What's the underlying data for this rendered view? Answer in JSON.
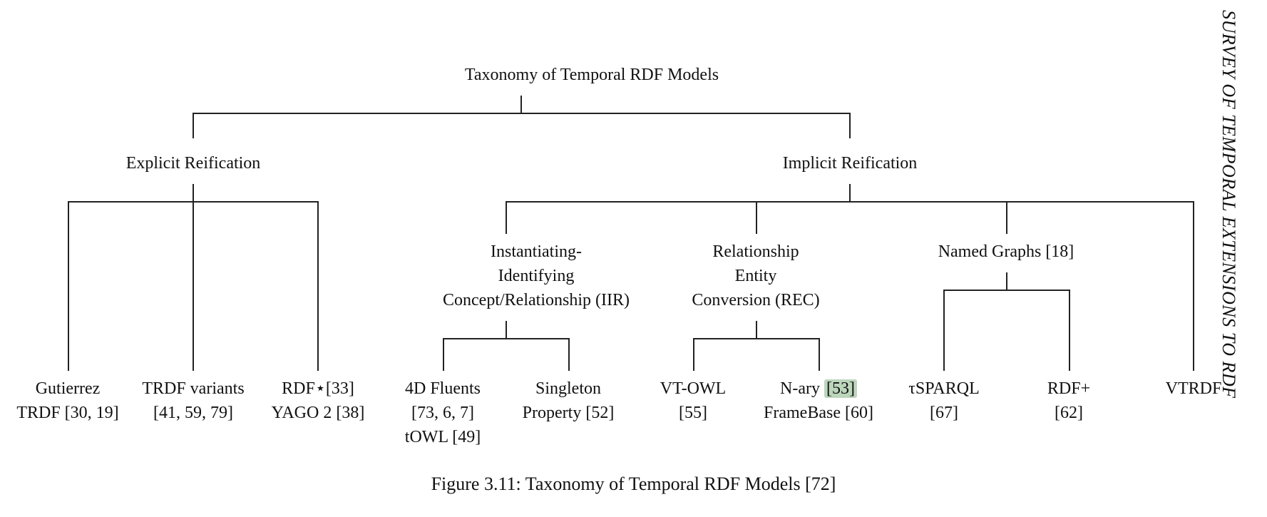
{
  "root": "Taxonomy of Temporal RDF Models",
  "explicit": {
    "title": "Explicit Reification",
    "leaves": [
      {
        "lines": [
          "Gutierrez",
          "TRDF [30, 19]"
        ]
      },
      {
        "lines": [
          "TRDF variants",
          "[41, 59, 79]"
        ]
      },
      {
        "lines": [
          "RDF⋆[33]",
          "YAGO 2 [38]"
        ]
      }
    ]
  },
  "implicit": {
    "title": "Implicit Reification",
    "iir": {
      "lines": [
        "Instantiating-",
        "Identifying",
        "Concept/Relationship (IIR)"
      ],
      "leaves": [
        {
          "lines": [
            "4D Fluents",
            "[73, 6, 7]",
            "tOWL [49]"
          ]
        },
        {
          "lines": [
            "Singleton",
            "Property [52]"
          ]
        }
      ]
    },
    "rec": {
      "lines": [
        "Relationship",
        "Entity",
        "Conversion (REC)"
      ],
      "leaves": [
        {
          "lines": [
            "VT-OWL",
            "[55]"
          ]
        },
        {
          "prefix": "N-ary ",
          "cite": "[53]",
          "line2": "FrameBase [60]"
        }
      ]
    },
    "named_graphs": {
      "title": "Named Graphs [18]",
      "leaves": [
        {
          "lines": [
            "τSPARQL",
            "[67]"
          ]
        },
        {
          "lines": [
            "RDF+",
            "[62]"
          ]
        }
      ]
    },
    "vtrdf": "VTRDF"
  },
  "side_header": "SURVEY OF TEMPORAL EXTENSIONS TO RDF",
  "caption": "Figure 3.11: Taxonomy of Temporal RDF Models [72]",
  "colors": {
    "highlight": "#bcd6bc",
    "line": "#222222"
  }
}
